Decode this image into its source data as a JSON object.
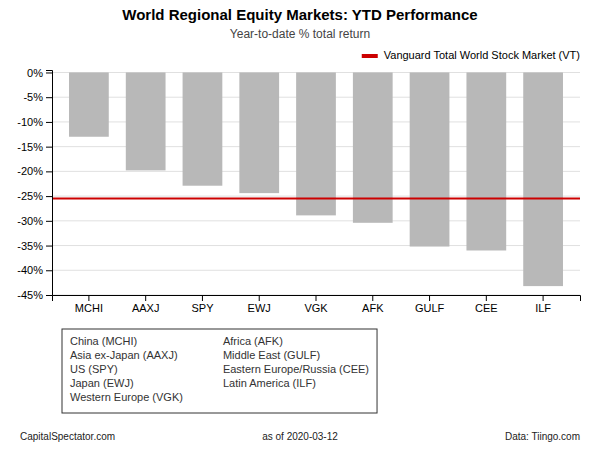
{
  "chart_data": {
    "type": "bar",
    "title": "World Regional Equity Markets: YTD Performance",
    "subtitle": "Year-to-date % total return",
    "categories": [
      "MCHI",
      "AAXJ",
      "SPY",
      "EWJ",
      "VGK",
      "AFK",
      "GULF",
      "CEE",
      "ILF"
    ],
    "values": [
      -13.0,
      -19.8,
      -22.9,
      -24.4,
      -28.9,
      -30.4,
      -35.2,
      -36.0,
      -43.2
    ],
    "color": "#b8b8b8",
    "ylim": [
      -45,
      0.5
    ],
    "yticks": [
      {
        "value": 0,
        "label": "0%"
      },
      {
        "value": -5,
        "label": "-5%"
      },
      {
        "value": -10,
        "label": "-10%"
      },
      {
        "value": -15,
        "label": "-15%"
      },
      {
        "value": -20,
        "label": "-20%"
      },
      {
        "value": -25,
        "label": "-25%"
      },
      {
        "value": -30,
        "label": "-30%"
      },
      {
        "value": -35,
        "label": "-35%"
      },
      {
        "value": -40,
        "label": "-40%"
      },
      {
        "value": -45,
        "label": "-45%"
      }
    ],
    "grid": true,
    "legend": "upper right",
    "reference_lines": [
      {
        "name": "Vanguard Total World Stock Market (VT)",
        "value": -25.5,
        "color": "#cc0000"
      }
    ],
    "annotations": [
      "China (MCHI)",
      "Asia ex-Japan (AAXJ)",
      "US (SPY)",
      "Japan (EWJ)",
      "Western Europe (VGK)",
      "Africa (AFK)",
      "Middle East (GULF)",
      "Eastern Europe/Russia (CEE)",
      "Latin America (ILF)"
    ],
    "footers": [
      "CapitalSpectator.com",
      "as of  2020-03-12",
      "Data: Tiingo.com"
    ]
  }
}
